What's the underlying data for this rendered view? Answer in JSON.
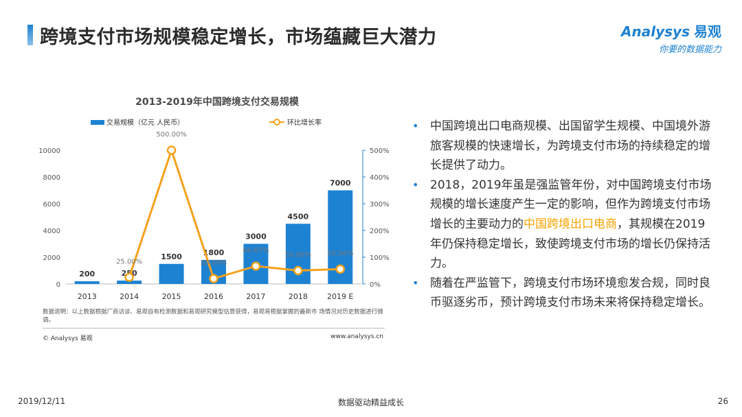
{
  "header": {
    "title": "跨境支付市场规模稳定增长，市场蕴藏巨大潜力",
    "logo_en": "Analysys",
    "logo_cn": "易观",
    "logo_tagline": "你要的数据能力"
  },
  "chart_data": {
    "type": "bar",
    "title": "2013-2019年中国跨境支付交易规模",
    "categories": [
      "2013",
      "2014",
      "2015",
      "2016",
      "2017",
      "2018",
      "2019 E"
    ],
    "series": [
      {
        "name": "交易规模（亿元 人民币）",
        "type": "bar",
        "axis": "left",
        "values": [
          200,
          250,
          1500,
          1800,
          3000,
          4500,
          7000
        ],
        "labels": [
          "200",
          "250",
          "1500",
          "1800",
          "3000",
          "4500",
          "7000"
        ]
      },
      {
        "name": "环比增长率",
        "type": "line",
        "axis": "right",
        "values": [
          null,
          25.0,
          500.0,
          20.0,
          66.67,
          50.0,
          55.56
        ],
        "labels": [
          "",
          "25.00%",
          "500.00%",
          "20.00%",
          "66.67%",
          "50.00%",
          "55.56%"
        ]
      }
    ],
    "yticks_left": [
      "0",
      "2000",
      "4000",
      "6000",
      "8000",
      "10000"
    ],
    "yticks_right": [
      "0%",
      "100%",
      "200%",
      "300%",
      "400%",
      "500%"
    ],
    "ylim_left": [
      0,
      10000
    ],
    "ylim_right": [
      0,
      500
    ],
    "legend_position": "top",
    "colors": {
      "bar": "#1e82d2",
      "line": "#f5a11c",
      "axis_right": "#1e82d2"
    }
  },
  "chart_note": "数据说明：以上数据根据厂商访谈、易观自有检测数据和易观研究模型估算获得，易观将根据掌握的最新市 场情况对历史数据进行微调。",
  "chart_copyright": "© Analysys 易观",
  "chart_website": "www.analysys.cn",
  "bullets": [
    {
      "text": "中国跨境出口电商规模、出国留学生规模、中国境外游旅客规模的快速增长，为跨境支付市场的持续稳定的增长提供了动力。"
    },
    {
      "before": "2018，2019年虽是强监管年份，对中国跨境支付市场规模的增长速度产生一定的影响，但作为跨境支付市场增长的主要动力的",
      "highlight": "中国跨境出口电商",
      "after": "，其规模在2019年仍保持稳定增长，致使跨境支付市场的增长仍保持活力。"
    },
    {
      "text": "随着在严监管下，跨境支付市场环境愈发合规，同时良币驱逐劣币，预计跨境支付市场未来将保持稳定增长。"
    }
  ],
  "footer": {
    "date": "2019/12/11",
    "center": "数据驱动精益成长",
    "page": "26"
  }
}
